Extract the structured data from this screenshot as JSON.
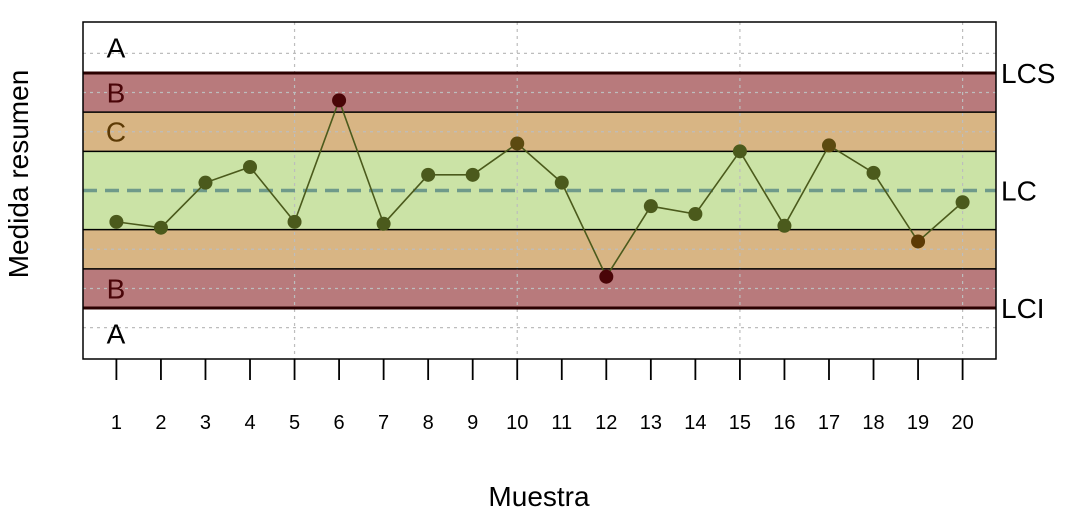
{
  "chart_data": {
    "type": "scatter",
    "variant": "control-chart-with-zones",
    "xlabel": "Muestra",
    "ylabel": "Medida resumen",
    "x": [
      1,
      2,
      3,
      4,
      5,
      6,
      7,
      8,
      9,
      10,
      11,
      12,
      13,
      14,
      15,
      16,
      17,
      18,
      19,
      20
    ],
    "values": [
      -0.8,
      -0.95,
      0.2,
      0.6,
      -0.8,
      2.3,
      -0.85,
      0.4,
      0.4,
      1.2,
      0.2,
      -2.2,
      -0.4,
      -0.6,
      1.0,
      -0.9,
      1.15,
      0.45,
      -1.3,
      -0.3
    ],
    "point_colors": [
      "#4b5a1c",
      "#4b5a1c",
      "#4b5a1c",
      "#4b5a1c",
      "#4b5a1c",
      "#4a0508",
      "#4b5a1c",
      "#4b5a1c",
      "#4b5a1c",
      "#5c4a10",
      "#4b5a1c",
      "#4a0508",
      "#4b5a1c",
      "#4b5a1c",
      "#4b5a1c",
      "#4b5a1c",
      "#5c4a10",
      "#4b5a1c",
      "#5c3a05",
      "#4b5a1c"
    ],
    "center_line": 0,
    "sigma_bounds": [
      -3,
      -2,
      -1,
      1,
      2,
      3
    ],
    "ylim": [
      -4.3,
      4.3
    ],
    "xlim": [
      0.25,
      20.75
    ],
    "zones": [
      {
        "name": "zone-a-upper",
        "from": 3,
        "to": 4.3,
        "color": "#ffffff",
        "letter": "A",
        "letter_color": "#000000"
      },
      {
        "name": "zone-b-upper",
        "from": 2,
        "to": 3,
        "color": "#b87a7c",
        "letter": "B",
        "letter_color": "#4a0508"
      },
      {
        "name": "zone-c-upper",
        "from": 1,
        "to": 2,
        "color": "#d8b584",
        "letter": "C",
        "letter_color": "#5c3a05"
      },
      {
        "name": "zone-center",
        "from": -1,
        "to": 1,
        "color": "#cbe3a6",
        "letter": "",
        "letter_color": "#000000"
      },
      {
        "name": "zone-c-lower",
        "from": -2,
        "to": -1,
        "color": "#d8b584",
        "letter": "",
        "letter_color": "#5c3a05"
      },
      {
        "name": "zone-b-lower",
        "from": -3,
        "to": -2,
        "color": "#b87a7c",
        "letter": "B",
        "letter_color": "#4a0508"
      },
      {
        "name": "zone-a-lower",
        "from": -4.3,
        "to": -3,
        "color": "#ffffff",
        "letter": "A",
        "letter_color": "#000000"
      }
    ],
    "limit_labels": [
      {
        "label": "LCS",
        "y": 3
      },
      {
        "label": "LC",
        "y": 0
      },
      {
        "label": "LCI",
        "y": -3
      }
    ],
    "grid": true,
    "colors": {
      "center_line": "#6f9a8a",
      "connector": "#4b5a1c",
      "limit_line": "#2a0000"
    }
  }
}
